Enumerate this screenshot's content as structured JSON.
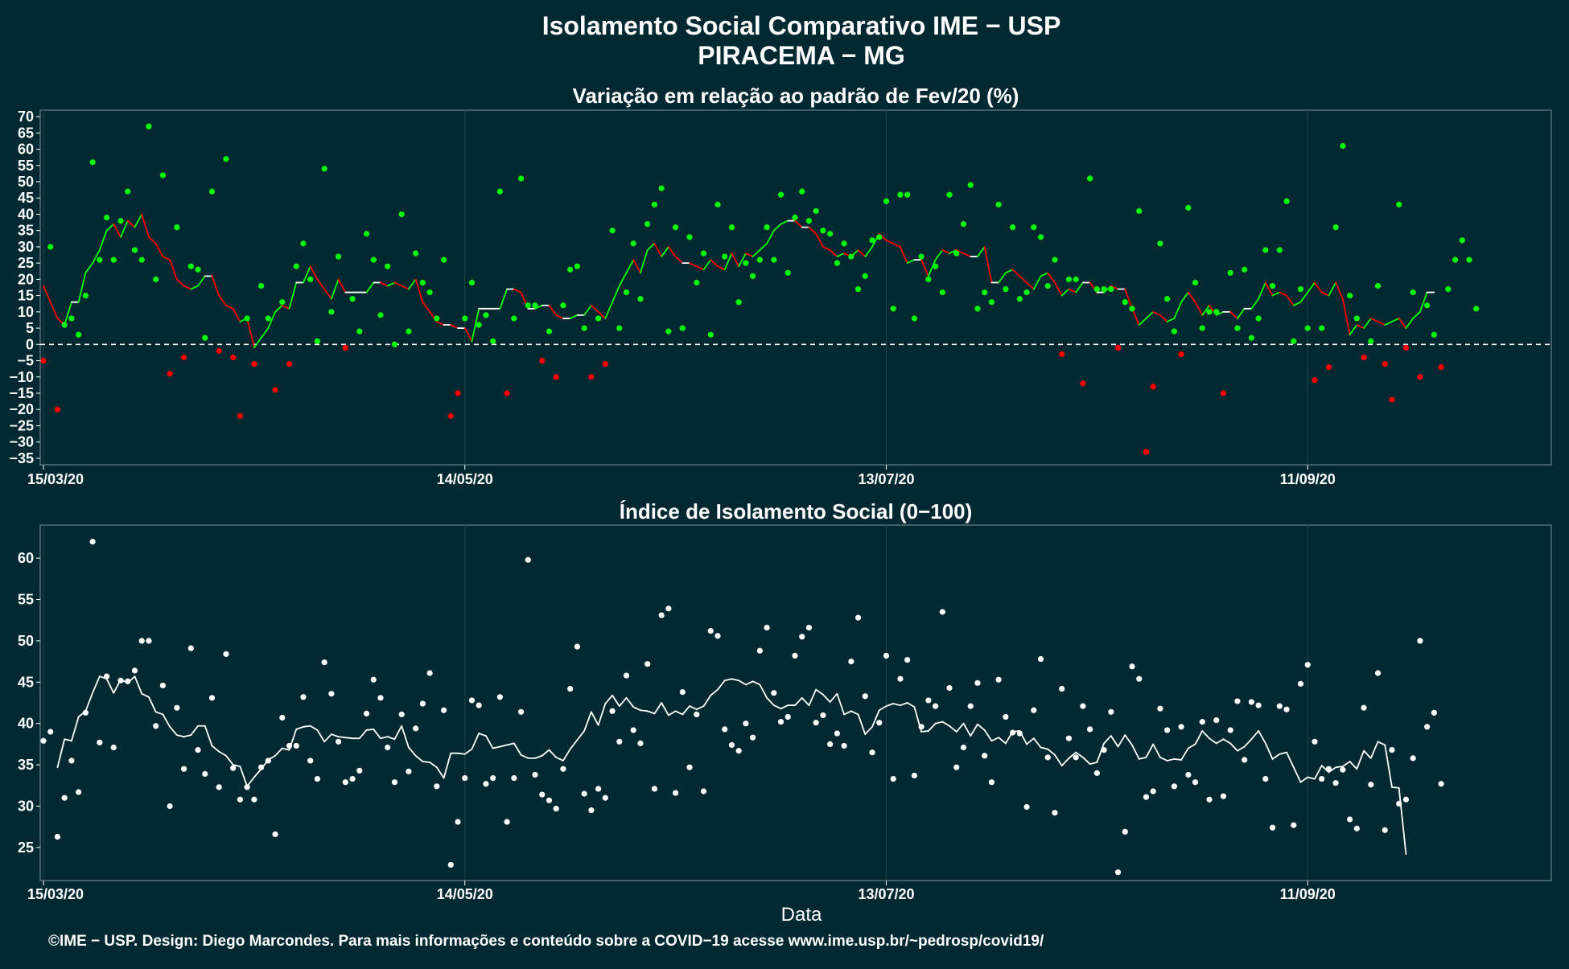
{
  "header": {
    "title_line1": "Isolamento Social Comparativo IME − USP",
    "title_line2": "PIRACEMA − MG"
  },
  "x_axis_title": "Data",
  "footer": "©IME − USP. Design: Diego Marcondes. Para mais informações e conteúdo sobre a COVID−19 acesse www.ime.usp.br/~pedrosp/covid19/",
  "colors": {
    "background": "#022932",
    "positive": "#00ff00",
    "negative": "#ff0000",
    "index": "#ffffff",
    "reference_line": "#ffffff"
  },
  "chart_data": [
    {
      "type": "line",
      "title": "Variação em relação ao padrão de Fev/20 (%)",
      "xlabel": "",
      "ylabel": "",
      "x_start": "15/03/20",
      "x_end": "15/10/20",
      "x_ticks": [
        "15/03/20",
        "14/05/20",
        "13/07/20",
        "11/09/20"
      ],
      "ylim": [
        -37,
        72
      ],
      "y_ticks": [
        -35,
        -30,
        -25,
        -20,
        -15,
        -10,
        -5,
        0,
        5,
        10,
        15,
        20,
        25,
        30,
        35,
        40,
        45,
        50,
        55,
        60,
        65,
        70
      ],
      "reference_line": 0,
      "point_color_rule": "green when value >= 0, red when value < 0",
      "line_color_rule": "green when rising, red when falling, white when flat",
      "daily_values": [
        -5,
        30,
        -20,
        6,
        8,
        3,
        15,
        56,
        26,
        39,
        26,
        38,
        47,
        29,
        26,
        67,
        20,
        52,
        -9,
        36,
        -4,
        24,
        23,
        2,
        47,
        -2,
        57,
        -4,
        -22,
        8,
        -6,
        18,
        8,
        -14,
        13,
        -6,
        24,
        31,
        20,
        1,
        54,
        10,
        27,
        -1,
        14,
        4,
        34,
        26,
        9,
        24,
        0,
        40,
        4,
        28,
        19,
        16,
        8,
        26,
        -22,
        -15,
        8,
        19,
        6,
        9,
        1,
        47,
        -15,
        8,
        51,
        12,
        12,
        -5,
        4,
        -10,
        12,
        23,
        24,
        5,
        -10,
        8,
        -6,
        35,
        5,
        16,
        31,
        14,
        37,
        43,
        48,
        4,
        36,
        5,
        33,
        19,
        28,
        3,
        43,
        27,
        36,
        13,
        25,
        21,
        26,
        36,
        26,
        46,
        22,
        39,
        47,
        38,
        41,
        35,
        34,
        25,
        31,
        27,
        17,
        21,
        32,
        33,
        44,
        11,
        46,
        46,
        8,
        27,
        20,
        24,
        16,
        46,
        28,
        37,
        49,
        11,
        16,
        13,
        43,
        17,
        36,
        14,
        16,
        36,
        33,
        18,
        26,
        -3,
        20,
        20,
        -12,
        51,
        17,
        17,
        17,
        -1,
        13,
        11,
        41,
        -33,
        -13,
        31,
        14,
        4,
        -3,
        42,
        19,
        5,
        10,
        10,
        -15,
        22,
        5,
        23,
        2,
        8,
        29,
        18,
        29,
        44,
        1,
        17,
        5,
        -11,
        5,
        -7,
        36,
        61,
        15,
        8,
        -4,
        1,
        18,
        -6,
        -17,
        43,
        -1,
        16,
        -10,
        12,
        3,
        -7,
        17,
        26,
        32,
        26,
        11
      ],
      "moving_average": [
        18,
        13,
        8,
        6,
        13,
        13,
        22,
        25,
        29,
        35,
        37,
        33,
        38,
        36,
        40,
        33,
        31,
        27,
        26,
        20,
        18,
        17,
        18,
        21,
        21,
        15,
        12,
        11,
        7,
        8,
        -1,
        2,
        5,
        10,
        12,
        11,
        19,
        19,
        24,
        20,
        17,
        14,
        20,
        16,
        16,
        16,
        16,
        19,
        19,
        18,
        19,
        18,
        17,
        20,
        13,
        10,
        7,
        6,
        6,
        5,
        5,
        1,
        11,
        11,
        11,
        11,
        17,
        17,
        16,
        11,
        11,
        12,
        12,
        9,
        8,
        8,
        9,
        9,
        12,
        10,
        8,
        13,
        18,
        22,
        26,
        22,
        29,
        31,
        27,
        30,
        27,
        25,
        25,
        24,
        23,
        26,
        24,
        23,
        28,
        24,
        28,
        27,
        29,
        31,
        35,
        37,
        38,
        38,
        36,
        36,
        34,
        30,
        29,
        27,
        28,
        27,
        29,
        27,
        30,
        34,
        32,
        31,
        30,
        25,
        26,
        26,
        21,
        26,
        29,
        28,
        29,
        28,
        27,
        27,
        30,
        19,
        19,
        22,
        23,
        21,
        19,
        17,
        21,
        22,
        19,
        15,
        17,
        16,
        19,
        19,
        16,
        16,
        18,
        17,
        17,
        11,
        6,
        8,
        10,
        9,
        7,
        8,
        13,
        16,
        13,
        9,
        12,
        9,
        10,
        10,
        8,
        11,
        11,
        14,
        19,
        15,
        16,
        15,
        12,
        13,
        16,
        19,
        16,
        15,
        19,
        14,
        3,
        6,
        5,
        8,
        7,
        6,
        7,
        8,
        5,
        8,
        10,
        16,
        16
      ],
      "moving_average_start_offset": 0
    },
    {
      "type": "line",
      "title": "Índice de Isolamento Social (0−100)",
      "xlabel": "Data",
      "ylabel": "",
      "x_start": "15/03/20",
      "x_end": "15/10/20",
      "x_ticks": [
        "15/03/20",
        "14/05/20",
        "13/07/20",
        "11/09/20"
      ],
      "ylim": [
        21,
        64
      ],
      "y_ticks": [
        25,
        30,
        35,
        40,
        45,
        50,
        55,
        60
      ],
      "daily_values": [
        37.9,
        39,
        26.3,
        31,
        35.5,
        31.7,
        41.3,
        62,
        37.7,
        45.7,
        37.1,
        45.2,
        45.1,
        46.4,
        50,
        50,
        39.7,
        44.6,
        30,
        41.9,
        34.5,
        49.1,
        36.8,
        33.9,
        43.1,
        32.3,
        48.4,
        34.6,
        30.8,
        32.3,
        30.8,
        34.7,
        35.5,
        26.6,
        40.7,
        37.3,
        37.3,
        43.2,
        35.5,
        33.3,
        47.4,
        43.6,
        37.8,
        32.9,
        33.3,
        34.3,
        41.2,
        45.3,
        43.1,
        37.1,
        32.9,
        41.1,
        34.2,
        39.4,
        42.4,
        46.1,
        32.4,
        41.6,
        22.9,
        28.1,
        33.4,
        42.8,
        42.2,
        32.7,
        33.4,
        43.2,
        28.1,
        33.4,
        41.4,
        59.8,
        33.8,
        31.4,
        30.7,
        29.7,
        34.5,
        44.2,
        49.3,
        31.5,
        29.5,
        32.1,
        31,
        41.5,
        37.8,
        45.8,
        39.2,
        37.6,
        47.2,
        32.1,
        53.1,
        53.9,
        31.6,
        43.8,
        34.7,
        41.1,
        31.8,
        51.2,
        50.6,
        39.3,
        37.4,
        36.7,
        40,
        38.3,
        48.8,
        51.6,
        43.7,
        40.2,
        40.8,
        48.2,
        50.5,
        51.6,
        40.1,
        41,
        37.5,
        38.8,
        37.3,
        47.5,
        52.8,
        43.3,
        36.5,
        40.1,
        48.2,
        33.3,
        45.4,
        47.7,
        33.7,
        39.6,
        42.8,
        42.1,
        53.5,
        44.3,
        34.7,
        37.1,
        42.1,
        44.9,
        36.1,
        32.9,
        45.3,
        40.8,
        38.9,
        38.8,
        29.9,
        41.6,
        47.8,
        35.9,
        29.2,
        44.2,
        38.2,
        35.9,
        42.1,
        39.3,
        34,
        36.8,
        41.4,
        22,
        26.9,
        46.9,
        45.4,
        31.1,
        31.8,
        41.8,
        39.2,
        32.4,
        39.6,
        33.8,
        32.9,
        40.2,
        30.8,
        40.4,
        31.2,
        39.2,
        42.7,
        35.6,
        42.6,
        42.2,
        33.3,
        27.4,
        42.1,
        41.7,
        27.7,
        44.8,
        47.1,
        37.8,
        33.3,
        34.5,
        32.8,
        34.4,
        28.4,
        27.3,
        41.9,
        32.6,
        46.1,
        27.1,
        36.8,
        30.3,
        30.8,
        35.8,
        50,
        39.6,
        41.3,
        32.7
      ],
      "moving_average": [
        34.7,
        38.1,
        37.9,
        40.8,
        41.5,
        43.7,
        45.7,
        45.4,
        43.7,
        45.3,
        44.9,
        45.7,
        43.6,
        43.2,
        41.4,
        41.1,
        39.6,
        38.6,
        38.4,
        38.6,
        39.7,
        39.7,
        37.3,
        36.6,
        36.1,
        35,
        34.8,
        32.4,
        33.5,
        34.5,
        35.6,
        36.1,
        37,
        36.8,
        39.3,
        39.6,
        39.7,
        39.2,
        37.8,
        38.7,
        38.4,
        38.3,
        38.2,
        38.2,
        39.2,
        39.3,
        38.2,
        38.4,
        38.1,
        39.7,
        37.1,
        36.1,
        35.4,
        35.3,
        34.7,
        33.4,
        36.4,
        36.4,
        36.3,
        36.9,
        38.8,
        38.5,
        37,
        37.2,
        37.4,
        37.6,
        36.2,
        35.8,
        35.8,
        36.1,
        36.8,
        35.9,
        35.5,
        36.9,
        38,
        39.1,
        41.4,
        39.8,
        42.4,
        43.4,
        42.1,
        43.1,
        42,
        41.6,
        41.5,
        41.2,
        42.5,
        41,
        41.5,
        41.1,
        42.1,
        41.7,
        42.1,
        43.4,
        44.1,
        45.2,
        45.4,
        45.2,
        44.7,
        45.1,
        44.7,
        43.1,
        42.2,
        41.8,
        42.2,
        42.2,
        43.1,
        42.2,
        44.1,
        43.5,
        42.6,
        43.6,
        41.1,
        41.5,
        41.1,
        38.7,
        39.6,
        41.6,
        42.1,
        42.4,
        42.2,
        42.5,
        42,
        39,
        39.1,
        40,
        40.2,
        39.7,
        39,
        40,
        38.5,
        39.9,
        39.2,
        37.9,
        38.3,
        37.6,
        39,
        39.1,
        37.5,
        38.2,
        37.1,
        36.9,
        36.2,
        34.9,
        35.8,
        36.5,
        35.9,
        35.1,
        35.3,
        37.6,
        38.5,
        37.2,
        38.6,
        37.4,
        35.7,
        35.9,
        37.5,
        35.9,
        35.5,
        35.7,
        35.6,
        37,
        37.5,
        39.1,
        38.2,
        37.6,
        38.1,
        37.6,
        36.7,
        37.2,
        38.1,
        39.1,
        37.6,
        35.7,
        36.3,
        36.5,
        34.7,
        32.9,
        33.5,
        33.3,
        34.9,
        34.1,
        34.7,
        34.8,
        35.4,
        34.5,
        36.7,
        35.8,
        37.8,
        37.4,
        32.3,
        32.2,
        24.2
      ],
      "moving_average_start_offset": 2
    }
  ]
}
